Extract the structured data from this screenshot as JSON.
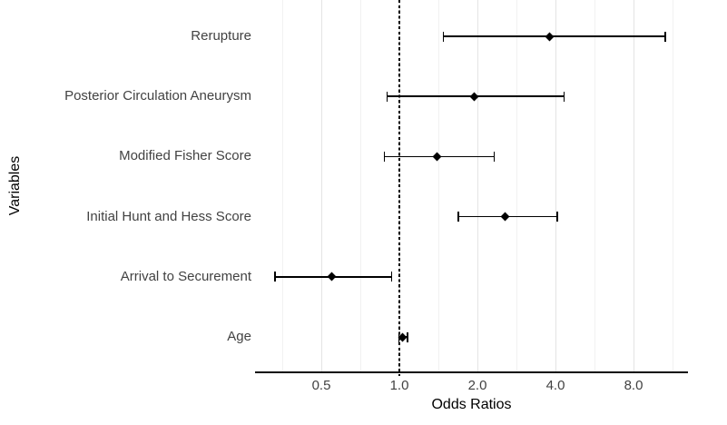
{
  "colors": {
    "background": "#ffffff",
    "marker": "#000000",
    "error_bar": "#000000",
    "reference_line": "#000000",
    "axis_line": "#0a0a0a",
    "grid_major": "#e4e4e4",
    "grid_minor": "#f1f1f1",
    "tick_text": "#424242",
    "category_text": "#424242",
    "axis_title_text": "#000000"
  },
  "chart_data": {
    "type": "scatter",
    "subtype": "forest-plot-with-horizontal-error-bars",
    "title": "",
    "xlabel": "Odds Ratios",
    "ylabel": "Variables",
    "x_scale": "log2",
    "xlim": [
      0.28,
      12.9
    ],
    "x_ticks": [
      0.5,
      1.0,
      2.0,
      4.0,
      8.0
    ],
    "x_tick_labels": [
      "0.5",
      "1.0",
      "2.0",
      "4.0",
      "8.0"
    ],
    "x_minor_grid": [
      0.3536,
      0.7071,
      1.4142,
      2.8284,
      5.6569,
      11.3137
    ],
    "reference_line_x": 1.0,
    "reference_line_style": "dashed",
    "grid": "vertical-only",
    "legend": "none",
    "marker": "filled-diamond",
    "categories": [
      "Rerupture",
      "Posterior Circulation Aneurysm",
      "Modified Fisher Score",
      "Initial Hunt and Hess Score",
      "Arrival to Securement",
      "Age"
    ],
    "points": [
      {
        "label": "Rerupture",
        "odds_ratio": 3.8,
        "ci_low": 1.47,
        "ci_high": 10.7
      },
      {
        "label": "Posterior Circulation Aneurysm",
        "odds_ratio": 1.95,
        "ci_low": 0.89,
        "ci_high": 4.35
      },
      {
        "label": "Modified Fisher Score",
        "odds_ratio": 1.4,
        "ci_low": 0.87,
        "ci_high": 2.34
      },
      {
        "label": "Initial Hunt and Hess Score",
        "odds_ratio": 2.56,
        "ci_low": 1.68,
        "ci_high": 4.1
      },
      {
        "label": "Arrival to Securement",
        "odds_ratio": 0.55,
        "ci_low": 0.33,
        "ci_high": 0.94
      },
      {
        "label": "Age",
        "odds_ratio": 1.03,
        "ci_low": 0.99,
        "ci_high": 1.08
      }
    ]
  }
}
